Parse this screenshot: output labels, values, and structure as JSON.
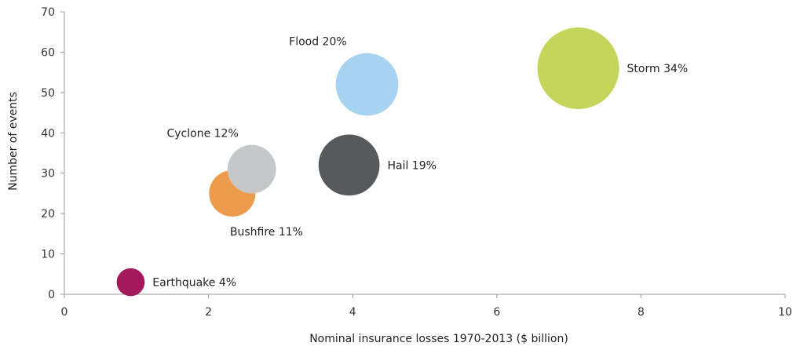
{
  "chart_data": {
    "type": "scatter",
    "xlabel": "Nominal insurance losses 1970-2013 ($ billion)",
    "ylabel": "Number of events",
    "xlim": [
      0,
      10
    ],
    "ylim": [
      0,
      70
    ],
    "x_ticks": [
      0,
      2,
      4,
      6,
      8,
      10
    ],
    "y_ticks": [
      0,
      10,
      20,
      30,
      40,
      50,
      60,
      70
    ],
    "grid": false,
    "points": [
      {
        "label": "Earthquake 4%",
        "share": 4,
        "x": 0.92,
        "y": 3,
        "color": "#a3195b",
        "label_side": "right"
      },
      {
        "label": "Bushfire 11%",
        "share": 11,
        "x": 2.33,
        "y": 25,
        "color": "#ec9c4c",
        "label_side": "below"
      },
      {
        "label": "Cyclone 12%",
        "share": 12,
        "x": 2.6,
        "y": 31,
        "color": "#c6c7c9",
        "label_side": "above-left"
      },
      {
        "label": "Flood 20%",
        "share": 20,
        "x": 4.2,
        "y": 52,
        "color": "#a7d3f0",
        "label_side": "above-left"
      },
      {
        "label": "Hail 19%",
        "share": 19,
        "x": 3.95,
        "y": 32,
        "color": "#58595b",
        "label_side": "right"
      },
      {
        "label": "Storm 34%",
        "share": 34,
        "x": 7.13,
        "y": 56,
        "color": "#c4d55b",
        "label_side": "right"
      }
    ]
  }
}
